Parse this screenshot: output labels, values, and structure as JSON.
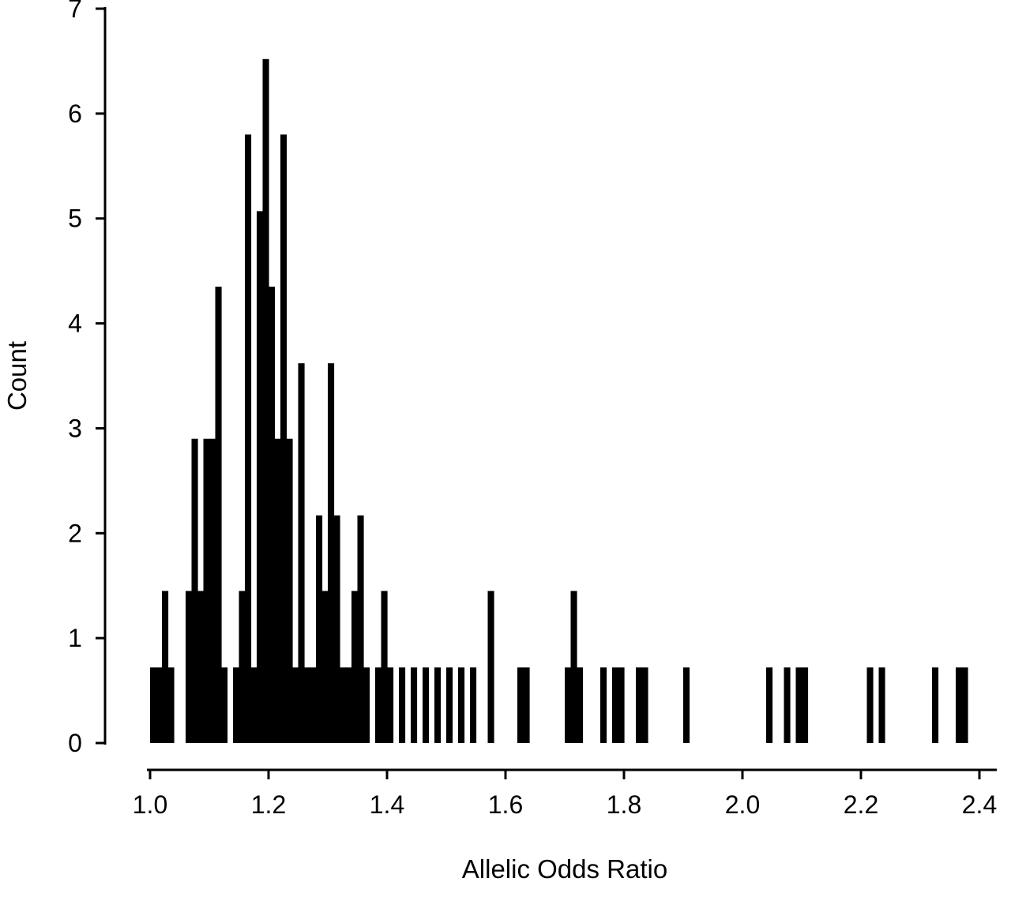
{
  "figure": {
    "background": "#ffffff",
    "bar_color": "#000000",
    "axis_color": "#000000"
  },
  "chart_data": {
    "type": "bar",
    "subtype": "histogram",
    "title": "",
    "xlabel": "Allelic Odds Ratio",
    "ylabel": "Count",
    "xlim": [
      1.0,
      2.4
    ],
    "ylim": [
      0,
      7
    ],
    "grid": false,
    "legend": "none",
    "x_ticks": [
      1.0,
      1.2,
      1.4,
      1.6,
      1.8,
      2.0,
      2.2,
      2.4
    ],
    "x_tick_labels": [
      "1.0",
      "1.2",
      "1.4",
      "1.6",
      "1.8",
      "2.0",
      "2.2",
      "2.4"
    ],
    "y_ticks": [
      0,
      1,
      2,
      3,
      4,
      5,
      6,
      7
    ],
    "y_tick_labels": [
      "0",
      "1",
      "2",
      "3",
      "4",
      "5",
      "6",
      "7"
    ],
    "bin_width": 0.01,
    "bars": [
      [
        1.0,
        0.72
      ],
      [
        1.01,
        0.72
      ],
      [
        1.02,
        1.45
      ],
      [
        1.03,
        0.72
      ],
      [
        1.06,
        1.45
      ],
      [
        1.07,
        2.9
      ],
      [
        1.08,
        1.45
      ],
      [
        1.09,
        2.9
      ],
      [
        1.1,
        2.9
      ],
      [
        1.11,
        4.35
      ],
      [
        1.12,
        0.72
      ],
      [
        1.14,
        0.72
      ],
      [
        1.15,
        1.45
      ],
      [
        1.16,
        5.8
      ],
      [
        1.17,
        0.72
      ],
      [
        1.18,
        5.07
      ],
      [
        1.19,
        6.52
      ],
      [
        1.2,
        4.35
      ],
      [
        1.21,
        2.9
      ],
      [
        1.22,
        5.8
      ],
      [
        1.23,
        2.9
      ],
      [
        1.24,
        0.72
      ],
      [
        1.25,
        3.62
      ],
      [
        1.26,
        0.72
      ],
      [
        1.27,
        0.72
      ],
      [
        1.28,
        2.17
      ],
      [
        1.29,
        1.45
      ],
      [
        1.3,
        3.62
      ],
      [
        1.31,
        2.17
      ],
      [
        1.32,
        0.72
      ],
      [
        1.33,
        0.72
      ],
      [
        1.34,
        1.45
      ],
      [
        1.35,
        2.17
      ],
      [
        1.36,
        0.72
      ],
      [
        1.38,
        0.72
      ],
      [
        1.39,
        1.45
      ],
      [
        1.4,
        0.72
      ],
      [
        1.42,
        0.72
      ],
      [
        1.44,
        0.72
      ],
      [
        1.46,
        0.72
      ],
      [
        1.48,
        0.72
      ],
      [
        1.5,
        0.72
      ],
      [
        1.52,
        0.72
      ],
      [
        1.54,
        0.72
      ],
      [
        1.57,
        1.45
      ],
      [
        1.62,
        0.72
      ],
      [
        1.63,
        0.72
      ],
      [
        1.7,
        0.72
      ],
      [
        1.71,
        1.45
      ],
      [
        1.72,
        0.72
      ],
      [
        1.76,
        0.72
      ],
      [
        1.78,
        0.72
      ],
      [
        1.79,
        0.72
      ],
      [
        1.82,
        0.72
      ],
      [
        1.83,
        0.72
      ],
      [
        1.9,
        0.72
      ],
      [
        2.04,
        0.72
      ],
      [
        2.07,
        0.72
      ],
      [
        2.09,
        0.72
      ],
      [
        2.1,
        0.72
      ],
      [
        2.21,
        0.72
      ],
      [
        2.23,
        0.72
      ],
      [
        2.32,
        0.72
      ],
      [
        2.36,
        0.72
      ],
      [
        2.37,
        0.72
      ]
    ]
  }
}
